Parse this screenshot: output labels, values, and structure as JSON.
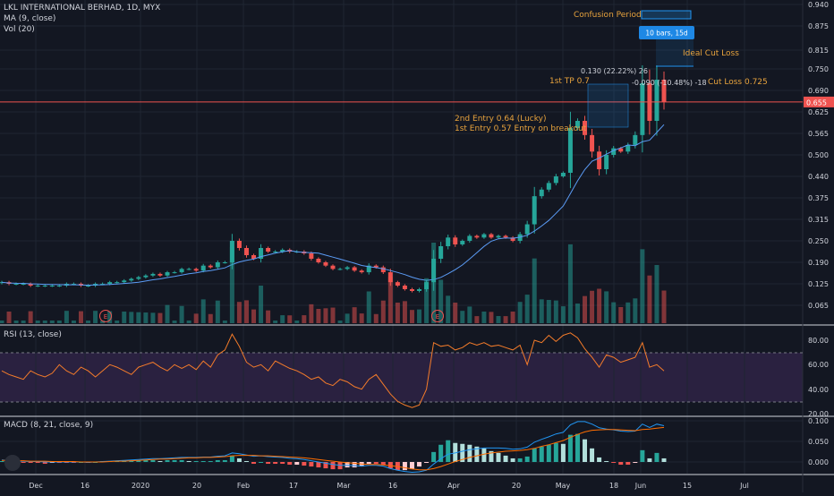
{
  "header": {
    "symbol": "LKL INTERNATIONAL BERHAD, 1D, MYX",
    "ma": "MA (9, close)",
    "vol": "Vol (20)"
  },
  "rsi_label": "RSI (13, close)",
  "macd_label": "MACD (8, 21, close, 9)",
  "colors": {
    "background": "#131722",
    "up": "#26a69a",
    "down": "#ef5350",
    "ma": "#5b9cf6",
    "rsi": "#f57c2a",
    "rsi_band": "#2a2140",
    "annotation": "#e8a33d",
    "macd_line": "#2196f3",
    "signal_line": "#ff6d00",
    "price_line": "#ef5350"
  },
  "chart_data": [
    {
      "type": "candlestick",
      "title": "LKL INTERNATIONAL BERHAD, 1D, MYX",
      "x_ticks": [
        "Dec",
        "16",
        "2020",
        "20",
        "Feb",
        "17",
        "Mar",
        "16",
        "Apr",
        "20",
        "May",
        "18",
        "Jun",
        "15",
        "Jul"
      ],
      "y_ticks": [
        "0.940",
        "0.875",
        "0.815",
        "0.750",
        "0.690",
        "0.625",
        "0.565",
        "0.500",
        "0.440",
        "0.375",
        "0.315",
        "0.250",
        "0.190",
        "0.125",
        "0.065"
      ],
      "ylim": [
        0.03,
        0.95
      ],
      "last_price": "0.655",
      "series_close_approx": [
        0.13,
        0.125,
        0.125,
        0.125,
        0.12,
        0.12,
        0.12,
        0.12,
        0.12,
        0.125,
        0.125,
        0.12,
        0.12,
        0.125,
        0.125,
        0.13,
        0.13,
        0.135,
        0.14,
        0.145,
        0.15,
        0.155,
        0.15,
        0.16,
        0.16,
        0.17,
        0.17,
        0.165,
        0.18,
        0.175,
        0.19,
        0.19,
        0.25,
        0.23,
        0.21,
        0.2,
        0.23,
        0.22,
        0.22,
        0.225,
        0.22,
        0.22,
        0.215,
        0.2,
        0.19,
        0.18,
        0.17,
        0.17,
        0.175,
        0.165,
        0.16,
        0.18,
        0.175,
        0.16,
        0.13,
        0.12,
        0.11,
        0.105,
        0.11,
        0.13,
        0.2,
        0.235,
        0.26,
        0.24,
        0.25,
        0.265,
        0.26,
        0.27,
        0.26,
        0.265,
        0.26,
        0.25,
        0.27,
        0.3,
        0.38,
        0.4,
        0.42,
        0.44,
        0.45,
        0.58,
        0.6,
        0.56,
        0.51,
        0.46,
        0.5,
        0.52,
        0.51,
        0.53,
        0.56,
        0.71,
        0.6,
        0.72,
        0.655
      ],
      "ma_label": "MA (9, close)",
      "volume_label": "Vol (20)",
      "annotations": [
        "Confusion Period",
        "10 bars, 15d",
        "Ideal Cut Loss",
        "0.130 (22.22%) 26",
        "1st TP 0.7",
        "-0.090 (-10.48%) -18",
        "Cut Loss 0.725",
        "2nd Entry 0.64 (Lucky)",
        "1st Entry 0.57 Entry on breakout"
      ],
      "event_markers": [
        "E",
        "E"
      ]
    },
    {
      "type": "line",
      "title": "RSI (13, close)",
      "y_ticks": [
        "80.00",
        "60.00",
        "40.00",
        "20.00"
      ],
      "ylim": [
        19,
        88
      ],
      "bands": [
        30,
        70
      ],
      "values_approx": [
        55,
        52,
        50,
        48,
        55,
        52,
        50,
        53,
        60,
        55,
        52,
        58,
        55,
        50,
        55,
        60,
        58,
        55,
        52,
        58,
        60,
        62,
        58,
        55,
        60,
        57,
        60,
        56,
        63,
        58,
        68,
        72,
        85,
        75,
        62,
        58,
        60,
        55,
        63,
        60,
        57,
        55,
        52,
        48,
        50,
        45,
        43,
        48,
        46,
        42,
        40,
        48,
        52,
        44,
        36,
        30,
        27,
        25,
        27,
        40,
        78,
        75,
        76,
        72,
        74,
        78,
        76,
        78,
        75,
        76,
        74,
        72,
        76,
        60,
        80,
        78,
        84,
        79,
        84,
        86,
        82,
        73,
        66,
        58,
        68,
        66,
        62,
        64,
        66,
        78,
        58,
        60,
        55
      ]
    },
    {
      "type": "line",
      "title": "MACD (8, 21, close, 9)",
      "y_ticks": [
        "0.100",
        "0.050",
        "0.000"
      ],
      "ylim": [
        -0.035,
        0.115
      ],
      "series": [
        {
          "name": "MACD",
          "values_approx": [
            0.005,
            0.003,
            0.002,
            0.002,
            0.001,
            0.001,
            0.0,
            0.0,
            0.0,
            0.0,
            0.0,
            0.0,
            -0.001,
            0.0,
            0.001,
            0.002,
            0.003,
            0.004,
            0.005,
            0.006,
            0.007,
            0.008,
            0.008,
            0.009,
            0.01,
            0.011,
            0.011,
            0.011,
            0.012,
            0.012,
            0.014,
            0.015,
            0.022,
            0.02,
            0.017,
            0.014,
            0.015,
            0.013,
            0.012,
            0.011,
            0.009,
            0.008,
            0.006,
            0.003,
            0.0,
            -0.003,
            -0.006,
            -0.008,
            -0.008,
            -0.009,
            -0.01,
            -0.008,
            -0.008,
            -0.01,
            -0.016,
            -0.02,
            -0.023,
            -0.025,
            -0.024,
            -0.02,
            -0.005,
            0.008,
            0.019,
            0.022,
            0.026,
            0.03,
            0.032,
            0.034,
            0.034,
            0.034,
            0.033,
            0.031,
            0.032,
            0.036,
            0.048,
            0.055,
            0.061,
            0.068,
            0.072,
            0.09,
            0.098,
            0.098,
            0.092,
            0.083,
            0.08,
            0.078,
            0.075,
            0.074,
            0.075,
            0.092,
            0.084,
            0.092,
            0.088
          ]
        },
        {
          "name": "Signal",
          "values_approx": [
            0.004,
            0.004,
            0.003,
            0.003,
            0.002,
            0.002,
            0.002,
            0.001,
            0.001,
            0.001,
            0.001,
            0.0,
            0.0,
            0.0,
            0.0,
            0.001,
            0.002,
            0.002,
            0.003,
            0.004,
            0.005,
            0.006,
            0.007,
            0.007,
            0.008,
            0.009,
            0.01,
            0.01,
            0.011,
            0.011,
            0.012,
            0.013,
            0.015,
            0.016,
            0.016,
            0.016,
            0.015,
            0.015,
            0.014,
            0.013,
            0.012,
            0.011,
            0.01,
            0.008,
            0.006,
            0.004,
            0.002,
            0.0,
            -0.002,
            -0.003,
            -0.005,
            -0.006,
            -0.006,
            -0.007,
            -0.009,
            -0.011,
            -0.014,
            -0.017,
            -0.019,
            -0.019,
            -0.016,
            -0.011,
            -0.005,
            0.001,
            0.006,
            0.011,
            0.015,
            0.019,
            0.022,
            0.024,
            0.026,
            0.027,
            0.028,
            0.03,
            0.033,
            0.038,
            0.042,
            0.047,
            0.052,
            0.06,
            0.067,
            0.073,
            0.077,
            0.078,
            0.079,
            0.079,
            0.078,
            0.077,
            0.076,
            0.079,
            0.08,
            0.082,
            0.084
          ]
        }
      ]
    }
  ]
}
